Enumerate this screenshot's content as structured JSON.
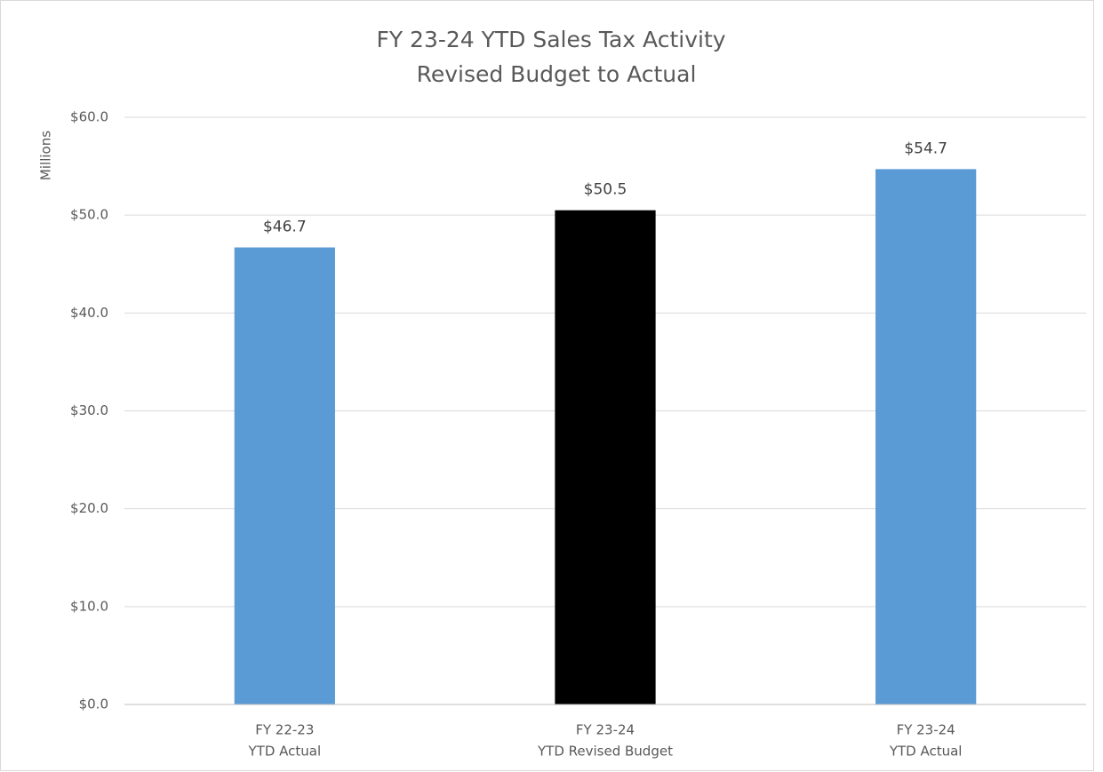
{
  "chart_data": {
    "type": "bar",
    "title": "FY 23-24 YTD Sales Tax Activity",
    "subtitle": "Revised Budget to Actual",
    "y_label": "Millions",
    "categories": [
      [
        "FY 22-23",
        "YTD Actual"
      ],
      [
        "FY 23-24",
        "YTD Revised Budget"
      ],
      [
        "FY 23-24",
        "YTD Actual"
      ]
    ],
    "values": [
      46.7,
      50.5,
      54.7
    ],
    "value_labels": [
      "$46.7",
      "$50.5",
      "$54.7"
    ],
    "colors": [
      "#5b9bd5",
      "#000000",
      "#5b9bd5"
    ],
    "ylim": [
      0,
      60
    ],
    "yticks": [
      {
        "value": 0,
        "label": "$0.0"
      },
      {
        "value": 10,
        "label": "$10.0"
      },
      {
        "value": 20,
        "label": "$20.0"
      },
      {
        "value": 30,
        "label": "$30.0"
      },
      {
        "value": 40,
        "label": "$40.0"
      },
      {
        "value": 50,
        "label": "$50.0"
      },
      {
        "value": 60,
        "label": "$60.0"
      }
    ],
    "grid": true
  }
}
